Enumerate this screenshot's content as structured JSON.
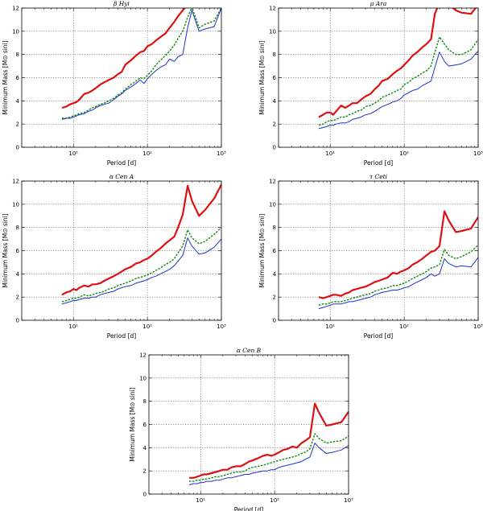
{
  "figure": {
    "xlabel": "Period [d]",
    "ylabel": "Minimum Mass [M⊙ sini]"
  },
  "colors": {
    "red": "#dd1111",
    "green": "#118811",
    "blue": "#1a33cc"
  },
  "chart_data": [
    {
      "type": "line",
      "title": "β Hyi",
      "xscale": "log",
      "xlim": [
        2,
        1000
      ],
      "ylim": [
        0,
        12
      ],
      "xticks": [
        10,
        100,
        1000
      ],
      "xticklabels": [
        "10¹",
        "10²",
        "10³"
      ],
      "yticks": [
        0,
        2,
        4,
        6,
        8,
        10,
        12
      ],
      "x": [
        7,
        8,
        9,
        10,
        11,
        12,
        14,
        16,
        18,
        20,
        23,
        26,
        30,
        35,
        40,
        45,
        50,
        60,
        70,
        80,
        90,
        100,
        115,
        130,
        150,
        175,
        200,
        230,
        260,
        300,
        350,
        400,
        500,
        600,
        800,
        1000
      ],
      "series": [
        {
          "name": "upper",
          "color": "red",
          "style": "solid",
          "width": 2.2,
          "values": [
            3.4,
            3.5,
            3.7,
            3.8,
            3.9,
            4.1,
            4.6,
            4.7,
            4.9,
            5.1,
            5.4,
            5.6,
            5.8,
            6.0,
            6.3,
            6.5,
            7.1,
            7.5,
            7.9,
            8.2,
            8.3,
            8.7,
            8.9,
            9.2,
            9.5,
            9.8,
            10.3,
            10.8,
            11.3,
            11.8,
            12.3,
            12.5,
            12.6,
            12.7,
            12.8,
            12.9
          ]
        },
        {
          "name": "middle",
          "color": "green",
          "style": "dashed",
          "width": 1.4,
          "values": [
            2.5,
            2.5,
            2.6,
            2.7,
            2.8,
            2.9,
            3.0,
            3.2,
            3.4,
            3.5,
            3.7,
            3.8,
            4.0,
            4.2,
            4.5,
            4.7,
            5.0,
            5.4,
            5.7,
            6.0,
            5.9,
            6.2,
            6.6,
            7.1,
            7.5,
            7.9,
            8.3,
            8.8,
            9.4,
            10.0,
            11.2,
            12.1,
            10.3,
            10.6,
            10.9,
            12.0
          ]
        },
        {
          "name": "lower",
          "color": "blue",
          "style": "solid",
          "width": 1.0,
          "values": [
            2.4,
            2.5,
            2.5,
            2.6,
            2.7,
            2.8,
            2.9,
            3.1,
            3.2,
            3.4,
            3.6,
            3.7,
            3.8,
            4.1,
            4.4,
            4.6,
            4.9,
            5.2,
            5.5,
            5.8,
            5.5,
            5.9,
            6.3,
            6.6,
            6.9,
            7.1,
            7.6,
            7.4,
            7.8,
            8.0,
            10.3,
            11.8,
            10.0,
            10.2,
            10.4,
            12.0
          ]
        }
      ]
    },
    {
      "type": "line",
      "title": "μ Ara",
      "xscale": "log",
      "xlim": [
        2,
        1000
      ],
      "ylim": [
        0,
        12
      ],
      "xticks": [
        10,
        100,
        1000
      ],
      "xticklabels": [
        "10¹",
        "10²",
        "10³"
      ],
      "yticks": [
        0,
        2,
        4,
        6,
        8,
        10,
        12
      ],
      "x": [
        7,
        8,
        9,
        10,
        11,
        12,
        14,
        16,
        18,
        20,
        23,
        26,
        30,
        35,
        40,
        45,
        50,
        60,
        70,
        80,
        90,
        100,
        115,
        130,
        150,
        175,
        200,
        230,
        260,
        300,
        350,
        400,
        500,
        600,
        800,
        1000
      ],
      "series": [
        {
          "name": "upper",
          "color": "red",
          "style": "solid",
          "width": 2.2,
          "values": [
            2.6,
            2.8,
            3.0,
            3.0,
            2.8,
            3.1,
            3.6,
            3.4,
            3.6,
            3.8,
            3.8,
            4.1,
            4.4,
            4.6,
            5.0,
            5.3,
            5.7,
            5.9,
            6.3,
            6.6,
            6.8,
            7.1,
            7.5,
            7.9,
            8.2,
            8.6,
            8.9,
            9.3,
            11.5,
            12.5,
            12.8,
            12.3,
            11.8,
            11.6,
            11.5,
            12.3
          ]
        },
        {
          "name": "middle",
          "color": "green",
          "style": "dashed",
          "width": 1.4,
          "values": [
            1.9,
            2.0,
            2.2,
            2.3,
            2.3,
            2.4,
            2.6,
            2.6,
            2.8,
            2.9,
            3.1,
            3.2,
            3.5,
            3.6,
            3.8,
            4.0,
            4.3,
            4.5,
            4.7,
            4.9,
            5.0,
            5.4,
            5.6,
            5.9,
            6.1,
            6.4,
            6.6,
            7.0,
            8.2,
            9.5,
            8.9,
            8.4,
            8.0,
            8.0,
            8.4,
            9.3
          ]
        },
        {
          "name": "lower",
          "color": "blue",
          "style": "solid",
          "width": 1.0,
          "values": [
            1.6,
            1.7,
            1.8,
            1.9,
            1.9,
            2.0,
            2.1,
            2.1,
            2.2,
            2.4,
            2.5,
            2.6,
            2.8,
            2.9,
            3.1,
            3.3,
            3.5,
            3.7,
            3.9,
            4.0,
            4.2,
            4.5,
            4.7,
            4.9,
            5.0,
            5.3,
            5.5,
            5.7,
            6.9,
            8.2,
            7.4,
            7.0,
            7.1,
            7.2,
            7.6,
            8.3
          ]
        }
      ]
    },
    {
      "type": "line",
      "title": "α Cen A",
      "xscale": "log",
      "xlim": [
        2,
        1000
      ],
      "ylim": [
        0,
        12
      ],
      "xticks": [
        10,
        100,
        1000
      ],
      "xticklabels": [
        "10¹",
        "10²",
        "10³"
      ],
      "yticks": [
        0,
        2,
        4,
        6,
        8,
        10,
        12
      ],
      "x": [
        7,
        8,
        9,
        10,
        11,
        12,
        14,
        16,
        18,
        20,
        23,
        26,
        30,
        35,
        40,
        45,
        50,
        60,
        70,
        80,
        90,
        100,
        115,
        130,
        150,
        175,
        200,
        230,
        260,
        300,
        350,
        400,
        500,
        600,
        800,
        1000
      ],
      "series": [
        {
          "name": "upper",
          "color": "red",
          "style": "solid",
          "width": 2.2,
          "values": [
            2.2,
            2.4,
            2.5,
            2.7,
            2.6,
            2.8,
            3.0,
            2.9,
            3.1,
            3.1,
            3.2,
            3.4,
            3.6,
            3.8,
            4.0,
            4.2,
            4.4,
            4.6,
            4.9,
            5.0,
            5.2,
            5.3,
            5.6,
            5.9,
            6.2,
            6.6,
            6.9,
            7.2,
            8.0,
            9.1,
            11.6,
            10.3,
            9.0,
            9.5,
            10.5,
            11.7
          ]
        },
        {
          "name": "middle",
          "color": "green",
          "style": "dashed",
          "width": 1.4,
          "values": [
            1.6,
            1.7,
            1.8,
            1.9,
            1.9,
            2.0,
            2.2,
            2.1,
            2.2,
            2.3,
            2.4,
            2.5,
            2.7,
            2.8,
            3.0,
            3.1,
            3.2,
            3.4,
            3.6,
            3.7,
            3.8,
            3.9,
            4.1,
            4.3,
            4.5,
            4.8,
            5.0,
            5.3,
            5.8,
            6.4,
            7.8,
            7.1,
            6.6,
            6.8,
            7.4,
            8.0
          ]
        },
        {
          "name": "lower",
          "color": "blue",
          "style": "solid",
          "width": 1.0,
          "values": [
            1.4,
            1.5,
            1.6,
            1.7,
            1.7,
            1.8,
            1.9,
            1.9,
            2.0,
            2.0,
            2.2,
            2.3,
            2.4,
            2.5,
            2.7,
            2.8,
            2.9,
            3.0,
            3.2,
            3.3,
            3.4,
            3.5,
            3.7,
            3.8,
            4.0,
            4.2,
            4.4,
            4.7,
            5.1,
            5.6,
            7.1,
            6.4,
            5.7,
            5.8,
            6.3,
            7.0
          ]
        }
      ]
    },
    {
      "type": "line",
      "title": "τ Ceti",
      "xscale": "log",
      "xlim": [
        2,
        1000
      ],
      "ylim": [
        0,
        12
      ],
      "xticks": [
        10,
        100,
        1000
      ],
      "xticklabels": [
        "10¹",
        "10²",
        "10³"
      ],
      "yticks": [
        0,
        2,
        4,
        6,
        8,
        10,
        12
      ],
      "x": [
        7,
        8,
        9,
        10,
        11,
        12,
        14,
        16,
        18,
        20,
        23,
        26,
        30,
        35,
        40,
        45,
        50,
        60,
        70,
        80,
        90,
        100,
        115,
        130,
        150,
        175,
        200,
        230,
        260,
        300,
        350,
        400,
        500,
        600,
        800,
        1000
      ],
      "series": [
        {
          "name": "upper",
          "color": "red",
          "style": "solid",
          "width": 2.2,
          "values": [
            2.0,
            1.9,
            2.0,
            2.1,
            2.2,
            2.2,
            2.1,
            2.3,
            2.4,
            2.6,
            2.7,
            2.8,
            2.9,
            3.1,
            3.3,
            3.4,
            3.5,
            3.7,
            4.1,
            4.0,
            4.2,
            4.3,
            4.5,
            4.8,
            5.0,
            5.3,
            5.6,
            5.9,
            6.0,
            6.4,
            9.4,
            8.6,
            7.6,
            7.7,
            7.9,
            8.9
          ]
        },
        {
          "name": "middle",
          "color": "green",
          "style": "dashed",
          "width": 1.4,
          "values": [
            1.3,
            1.4,
            1.4,
            1.5,
            1.6,
            1.6,
            1.6,
            1.7,
            1.8,
            1.9,
            2.0,
            2.1,
            2.2,
            2.3,
            2.5,
            2.6,
            2.7,
            2.8,
            3.0,
            3.0,
            3.1,
            3.2,
            3.4,
            3.6,
            3.8,
            4.0,
            4.2,
            4.5,
            4.6,
            4.8,
            6.1,
            5.6,
            5.3,
            5.5,
            5.9,
            6.5
          ]
        },
        {
          "name": "lower",
          "color": "blue",
          "style": "solid",
          "width": 1.0,
          "values": [
            1.0,
            1.1,
            1.2,
            1.3,
            1.4,
            1.4,
            1.4,
            1.5,
            1.6,
            1.6,
            1.7,
            1.8,
            1.9,
            2.0,
            2.2,
            2.3,
            2.4,
            2.5,
            2.6,
            2.6,
            2.7,
            2.8,
            2.9,
            3.1,
            3.3,
            3.5,
            3.7,
            4.0,
            3.8,
            4.0,
            5.3,
            4.9,
            4.6,
            4.7,
            4.6,
            5.4
          ]
        }
      ]
    },
    {
      "type": "line",
      "title": "α Cen B",
      "xscale": "log",
      "xlim": [
        2,
        1000
      ],
      "ylim": [
        0,
        12
      ],
      "xticks": [
        10,
        100,
        1000
      ],
      "xticklabels": [
        "10¹",
        "10²",
        "10³"
      ],
      "yticks": [
        0,
        2,
        4,
        6,
        8,
        10,
        12
      ],
      "x": [
        7,
        8,
        9,
        10,
        11,
        12,
        14,
        16,
        18,
        20,
        23,
        26,
        30,
        35,
        40,
        45,
        50,
        60,
        70,
        80,
        90,
        100,
        115,
        130,
        150,
        175,
        200,
        230,
        260,
        300,
        350,
        400,
        500,
        600,
        800,
        1000
      ],
      "series": [
        {
          "name": "upper",
          "color": "red",
          "style": "solid",
          "width": 2.2,
          "values": [
            1.4,
            1.4,
            1.5,
            1.6,
            1.7,
            1.7,
            1.8,
            1.9,
            2.0,
            2.1,
            2.1,
            2.3,
            2.4,
            2.4,
            2.6,
            2.8,
            2.9,
            3.1,
            3.3,
            3.4,
            3.3,
            3.4,
            3.6,
            3.8,
            3.9,
            4.1,
            4.0,
            4.4,
            4.6,
            4.9,
            7.8,
            7.0,
            5.9,
            6.0,
            6.2,
            7.1
          ]
        },
        {
          "name": "middle",
          "color": "green",
          "style": "dashed",
          "width": 1.4,
          "values": [
            1.1,
            1.1,
            1.2,
            1.2,
            1.3,
            1.3,
            1.4,
            1.5,
            1.5,
            1.6,
            1.7,
            1.8,
            1.9,
            1.9,
            2.0,
            2.2,
            2.3,
            2.4,
            2.5,
            2.6,
            2.7,
            2.8,
            2.9,
            3.0,
            3.1,
            3.2,
            3.3,
            3.5,
            3.6,
            3.9,
            5.2,
            4.8,
            4.4,
            4.5,
            4.6,
            5.0
          ]
        },
        {
          "name": "lower",
          "color": "blue",
          "style": "solid",
          "width": 1.0,
          "values": [
            0.8,
            0.9,
            0.9,
            1.0,
            1.0,
            1.1,
            1.1,
            1.2,
            1.2,
            1.3,
            1.4,
            1.4,
            1.5,
            1.6,
            1.7,
            1.7,
            1.8,
            1.9,
            2.0,
            2.0,
            2.1,
            2.1,
            2.3,
            2.4,
            2.5,
            2.6,
            2.7,
            2.8,
            3.0,
            3.2,
            4.4,
            4.0,
            3.5,
            3.6,
            3.8,
            4.2
          ]
        }
      ]
    }
  ]
}
